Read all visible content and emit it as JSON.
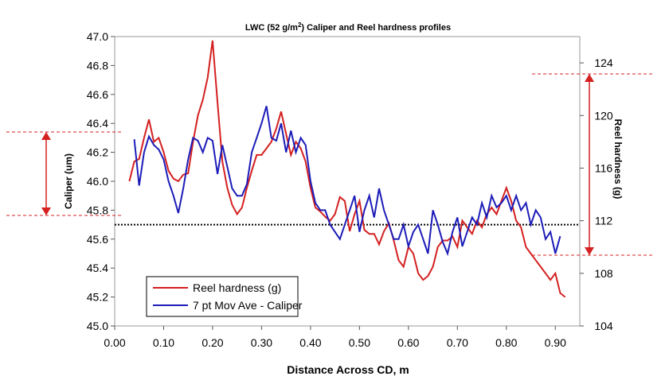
{
  "chart_data": {
    "type": "line",
    "title": "LWC (52 g/m2) Caliper and Reel hardness profiles",
    "title_parts": {
      "before": "LWC (52 g/m",
      "sup": "2",
      "after": ") Caliper and Reel hardness profiles"
    },
    "xlabel": "Distance Across CD, m",
    "ylabel_left": "Caliper (um)",
    "ylabel_right": "Reel hardness (g)",
    "xlim": [
      0.0,
      0.95
    ],
    "ylim_left": [
      45.0,
      47.0
    ],
    "ylim_right": [
      104,
      126
    ],
    "x_ticks": [
      "0.00",
      "0.10",
      "0.20",
      "0.30",
      "0.40",
      "0.50",
      "0.60",
      "0.70",
      "0.80",
      "0.90"
    ],
    "x_tick_values": [
      0.0,
      0.1,
      0.2,
      0.3,
      0.4,
      0.5,
      0.6,
      0.7,
      0.8,
      0.9
    ],
    "y_left_ticks": [
      "45.0",
      "45.2",
      "45.4",
      "45.6",
      "45.8",
      "46.0",
      "46.2",
      "46.4",
      "46.6",
      "46.8",
      "47.0"
    ],
    "y_left_tick_values": [
      45.0,
      45.2,
      45.4,
      45.6,
      45.8,
      46.0,
      46.2,
      46.4,
      46.6,
      46.8,
      47.0
    ],
    "y_right_ticks": [
      "104",
      "108",
      "112",
      "116",
      "120",
      "124"
    ],
    "y_right_tick_values": [
      104,
      108,
      112,
      116,
      120,
      124
    ],
    "reference_line_left": 45.7,
    "legend_placement": "bottom-left",
    "colors": {
      "reel": "#d42020",
      "caliper": "#1c1cb8",
      "annotation": "#d42020",
      "reference": "#000000"
    },
    "series": [
      {
        "name": "Reel hardness (g)",
        "axis": "right",
        "color": "#d42020",
        "x": [
          0.03,
          0.04,
          0.05,
          0.06,
          0.07,
          0.08,
          0.09,
          0.1,
          0.11,
          0.12,
          0.13,
          0.14,
          0.15,
          0.16,
          0.17,
          0.18,
          0.19,
          0.2,
          0.21,
          0.22,
          0.23,
          0.24,
          0.25,
          0.26,
          0.27,
          0.28,
          0.29,
          0.3,
          0.31,
          0.32,
          0.33,
          0.34,
          0.35,
          0.36,
          0.37,
          0.38,
          0.39,
          0.4,
          0.41,
          0.42,
          0.43,
          0.44,
          0.45,
          0.46,
          0.47,
          0.48,
          0.49,
          0.5,
          0.51,
          0.52,
          0.53,
          0.54,
          0.55,
          0.56,
          0.57,
          0.58,
          0.59,
          0.6,
          0.61,
          0.62,
          0.63,
          0.64,
          0.65,
          0.66,
          0.67,
          0.68,
          0.69,
          0.7,
          0.71,
          0.72,
          0.73,
          0.74,
          0.75,
          0.76,
          0.77,
          0.78,
          0.79,
          0.8,
          0.81,
          0.82,
          0.83,
          0.84,
          0.85,
          0.86,
          0.87,
          0.88,
          0.89,
          0.9,
          0.91,
          0.92
        ],
        "values": [
          115.0,
          116.5,
          116.7,
          118.3,
          119.7,
          118.0,
          118.3,
          117.2,
          115.8,
          115.2,
          115.0,
          115.5,
          115.6,
          118.0,
          120.0,
          121.2,
          122.9,
          125.7,
          121.0,
          116.5,
          114.5,
          113.2,
          112.5,
          113.0,
          114.5,
          115.8,
          117.0,
          117.0,
          117.5,
          118.0,
          119.0,
          120.3,
          118.6,
          117.0,
          118.0,
          117.5,
          116.5,
          114.5,
          113.0,
          112.7,
          112.3,
          112.0,
          112.5,
          113.8,
          113.5,
          111.2,
          112.5,
          113.5,
          111.3,
          111.0,
          111.0,
          110.2,
          111.2,
          111.8,
          110.5,
          109.0,
          108.5,
          110.0,
          109.5,
          108.0,
          107.5,
          107.8,
          108.5,
          110.0,
          110.5,
          110.5,
          110.8,
          110.0,
          112.0,
          111.5,
          111.0,
          112.0,
          111.5,
          112.5,
          113.0,
          112.5,
          113.5,
          114.5,
          113.5,
          112.0,
          111.5,
          110.0,
          109.5,
          109.0,
          108.5,
          108.0,
          107.5,
          108.0,
          106.5,
          106.2
        ]
      },
      {
        "name": "7 pt Mov Ave - Caliper",
        "axis": "left",
        "color": "#1c1cb8",
        "x": [
          0.04,
          0.05,
          0.06,
          0.07,
          0.08,
          0.09,
          0.1,
          0.11,
          0.12,
          0.13,
          0.14,
          0.15,
          0.16,
          0.17,
          0.18,
          0.19,
          0.2,
          0.21,
          0.22,
          0.23,
          0.24,
          0.25,
          0.26,
          0.27,
          0.28,
          0.29,
          0.3,
          0.31,
          0.32,
          0.33,
          0.34,
          0.35,
          0.36,
          0.37,
          0.38,
          0.39,
          0.4,
          0.41,
          0.42,
          0.43,
          0.44,
          0.45,
          0.46,
          0.47,
          0.48,
          0.49,
          0.5,
          0.51,
          0.52,
          0.53,
          0.54,
          0.55,
          0.56,
          0.57,
          0.58,
          0.59,
          0.6,
          0.61,
          0.62,
          0.63,
          0.64,
          0.65,
          0.66,
          0.67,
          0.68,
          0.69,
          0.7,
          0.71,
          0.72,
          0.73,
          0.74,
          0.75,
          0.76,
          0.77,
          0.78,
          0.79,
          0.8,
          0.81,
          0.82,
          0.83,
          0.84,
          0.85,
          0.86,
          0.87,
          0.88,
          0.89,
          0.9,
          0.91
        ],
        "values": [
          46.29,
          45.97,
          46.2,
          46.31,
          46.25,
          46.22,
          46.15,
          46.0,
          45.9,
          45.78,
          45.95,
          46.15,
          46.3,
          46.28,
          46.2,
          46.3,
          46.28,
          46.05,
          46.25,
          46.1,
          45.95,
          45.9,
          45.9,
          45.98,
          46.2,
          46.3,
          46.4,
          46.52,
          46.3,
          46.28,
          46.4,
          46.2,
          46.35,
          46.2,
          46.3,
          46.25,
          46.0,
          45.85,
          45.8,
          45.8,
          45.7,
          45.65,
          45.6,
          45.7,
          45.8,
          45.9,
          45.65,
          45.8,
          45.9,
          45.75,
          45.95,
          45.8,
          45.7,
          45.6,
          45.6,
          45.7,
          45.55,
          45.65,
          45.7,
          45.6,
          45.5,
          45.8,
          45.7,
          45.58,
          45.5,
          45.65,
          45.75,
          45.55,
          45.65,
          45.75,
          45.7,
          45.85,
          45.75,
          45.9,
          45.82,
          45.85,
          45.9,
          45.8,
          45.9,
          45.8,
          45.85,
          45.7,
          45.8,
          45.75,
          45.6,
          45.65,
          45.5,
          45.62
        ]
      }
    ]
  }
}
